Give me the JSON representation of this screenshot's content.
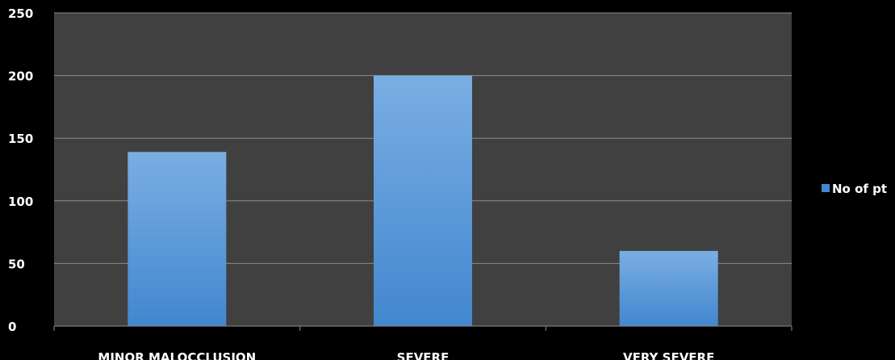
{
  "chart_data": {
    "type": "bar",
    "categories": [
      "MINOR MALOCCLUSION",
      "SEVERE",
      "VERY SEVERE"
    ],
    "series": [
      {
        "name": "No of pt",
        "values": [
          139,
          200,
          60
        ]
      }
    ],
    "ylim": [
      0,
      250
    ],
    "yticks": [
      "0",
      "50",
      "100",
      "150",
      "200",
      "250"
    ],
    "grid": true,
    "legend": "right",
    "colors": {
      "background": "#000000",
      "plot_area": "#404040",
      "gridline": "#8c8c8c",
      "bar_top": "#7aaee3",
      "bar_bottom": "#4287cf",
      "text": "#ffffff"
    }
  }
}
